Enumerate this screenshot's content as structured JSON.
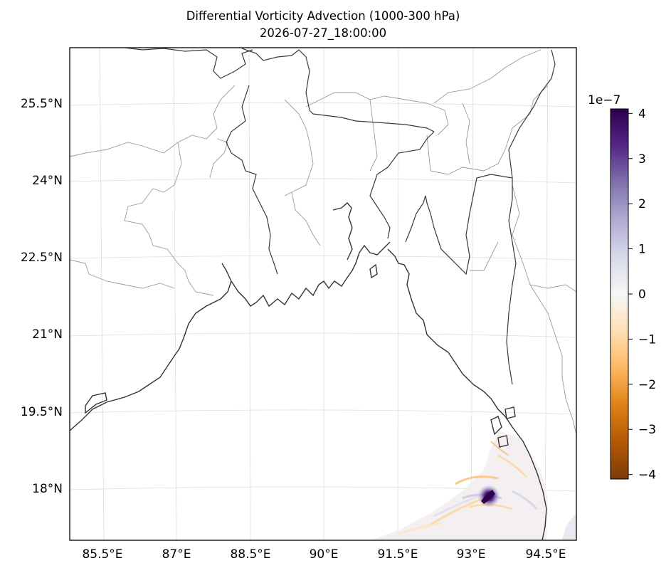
{
  "title": {
    "line1": "Differential Vorticity Advection (1000-300 hPa)",
    "line2": "2026-07-27_18:00:00"
  },
  "map": {
    "projection": "lambert-conformal",
    "extent_lon": [
      84.9,
      95.0
    ],
    "extent_lat": [
      17.0,
      26.4
    ],
    "background": "#ffffff",
    "coastline_color": "#333333",
    "boundary_color": "#999999",
    "gridline_color": "#dddddd"
  },
  "axes": {
    "lon_ticks": [
      "85.5°E",
      "87°E",
      "88.5°E",
      "90°E",
      "91.5°E",
      "93°E",
      "94.5°E"
    ],
    "lat_ticks": [
      "25.5°N",
      "24°N",
      "22.5°N",
      "21°N",
      "19.5°N",
      "18°N"
    ]
  },
  "colorbar": {
    "exponent_label": "1e−7",
    "colormap": "PuOr",
    "range": [
      -4.1,
      4.1
    ],
    "ticks": [
      "4",
      "3",
      "2",
      "1",
      "0",
      "−1",
      "−2",
      "−3",
      "−4"
    ],
    "tick_values": [
      4,
      3,
      2,
      1,
      0,
      -1,
      -2,
      -3,
      -4
    ],
    "colors": [
      "#7f3b08",
      "#b35806",
      "#e08214",
      "#fdb863",
      "#fee0b6",
      "#f7f7f7",
      "#d8daeb",
      "#b2abd2",
      "#8073ac",
      "#542788",
      "#2d004b"
    ]
  },
  "field_highlight": {
    "max_value": 4.1,
    "min_value": -2.5,
    "region": "Bay of Bengal, west of Myanmar coast near 18°N 93.2°E"
  }
}
